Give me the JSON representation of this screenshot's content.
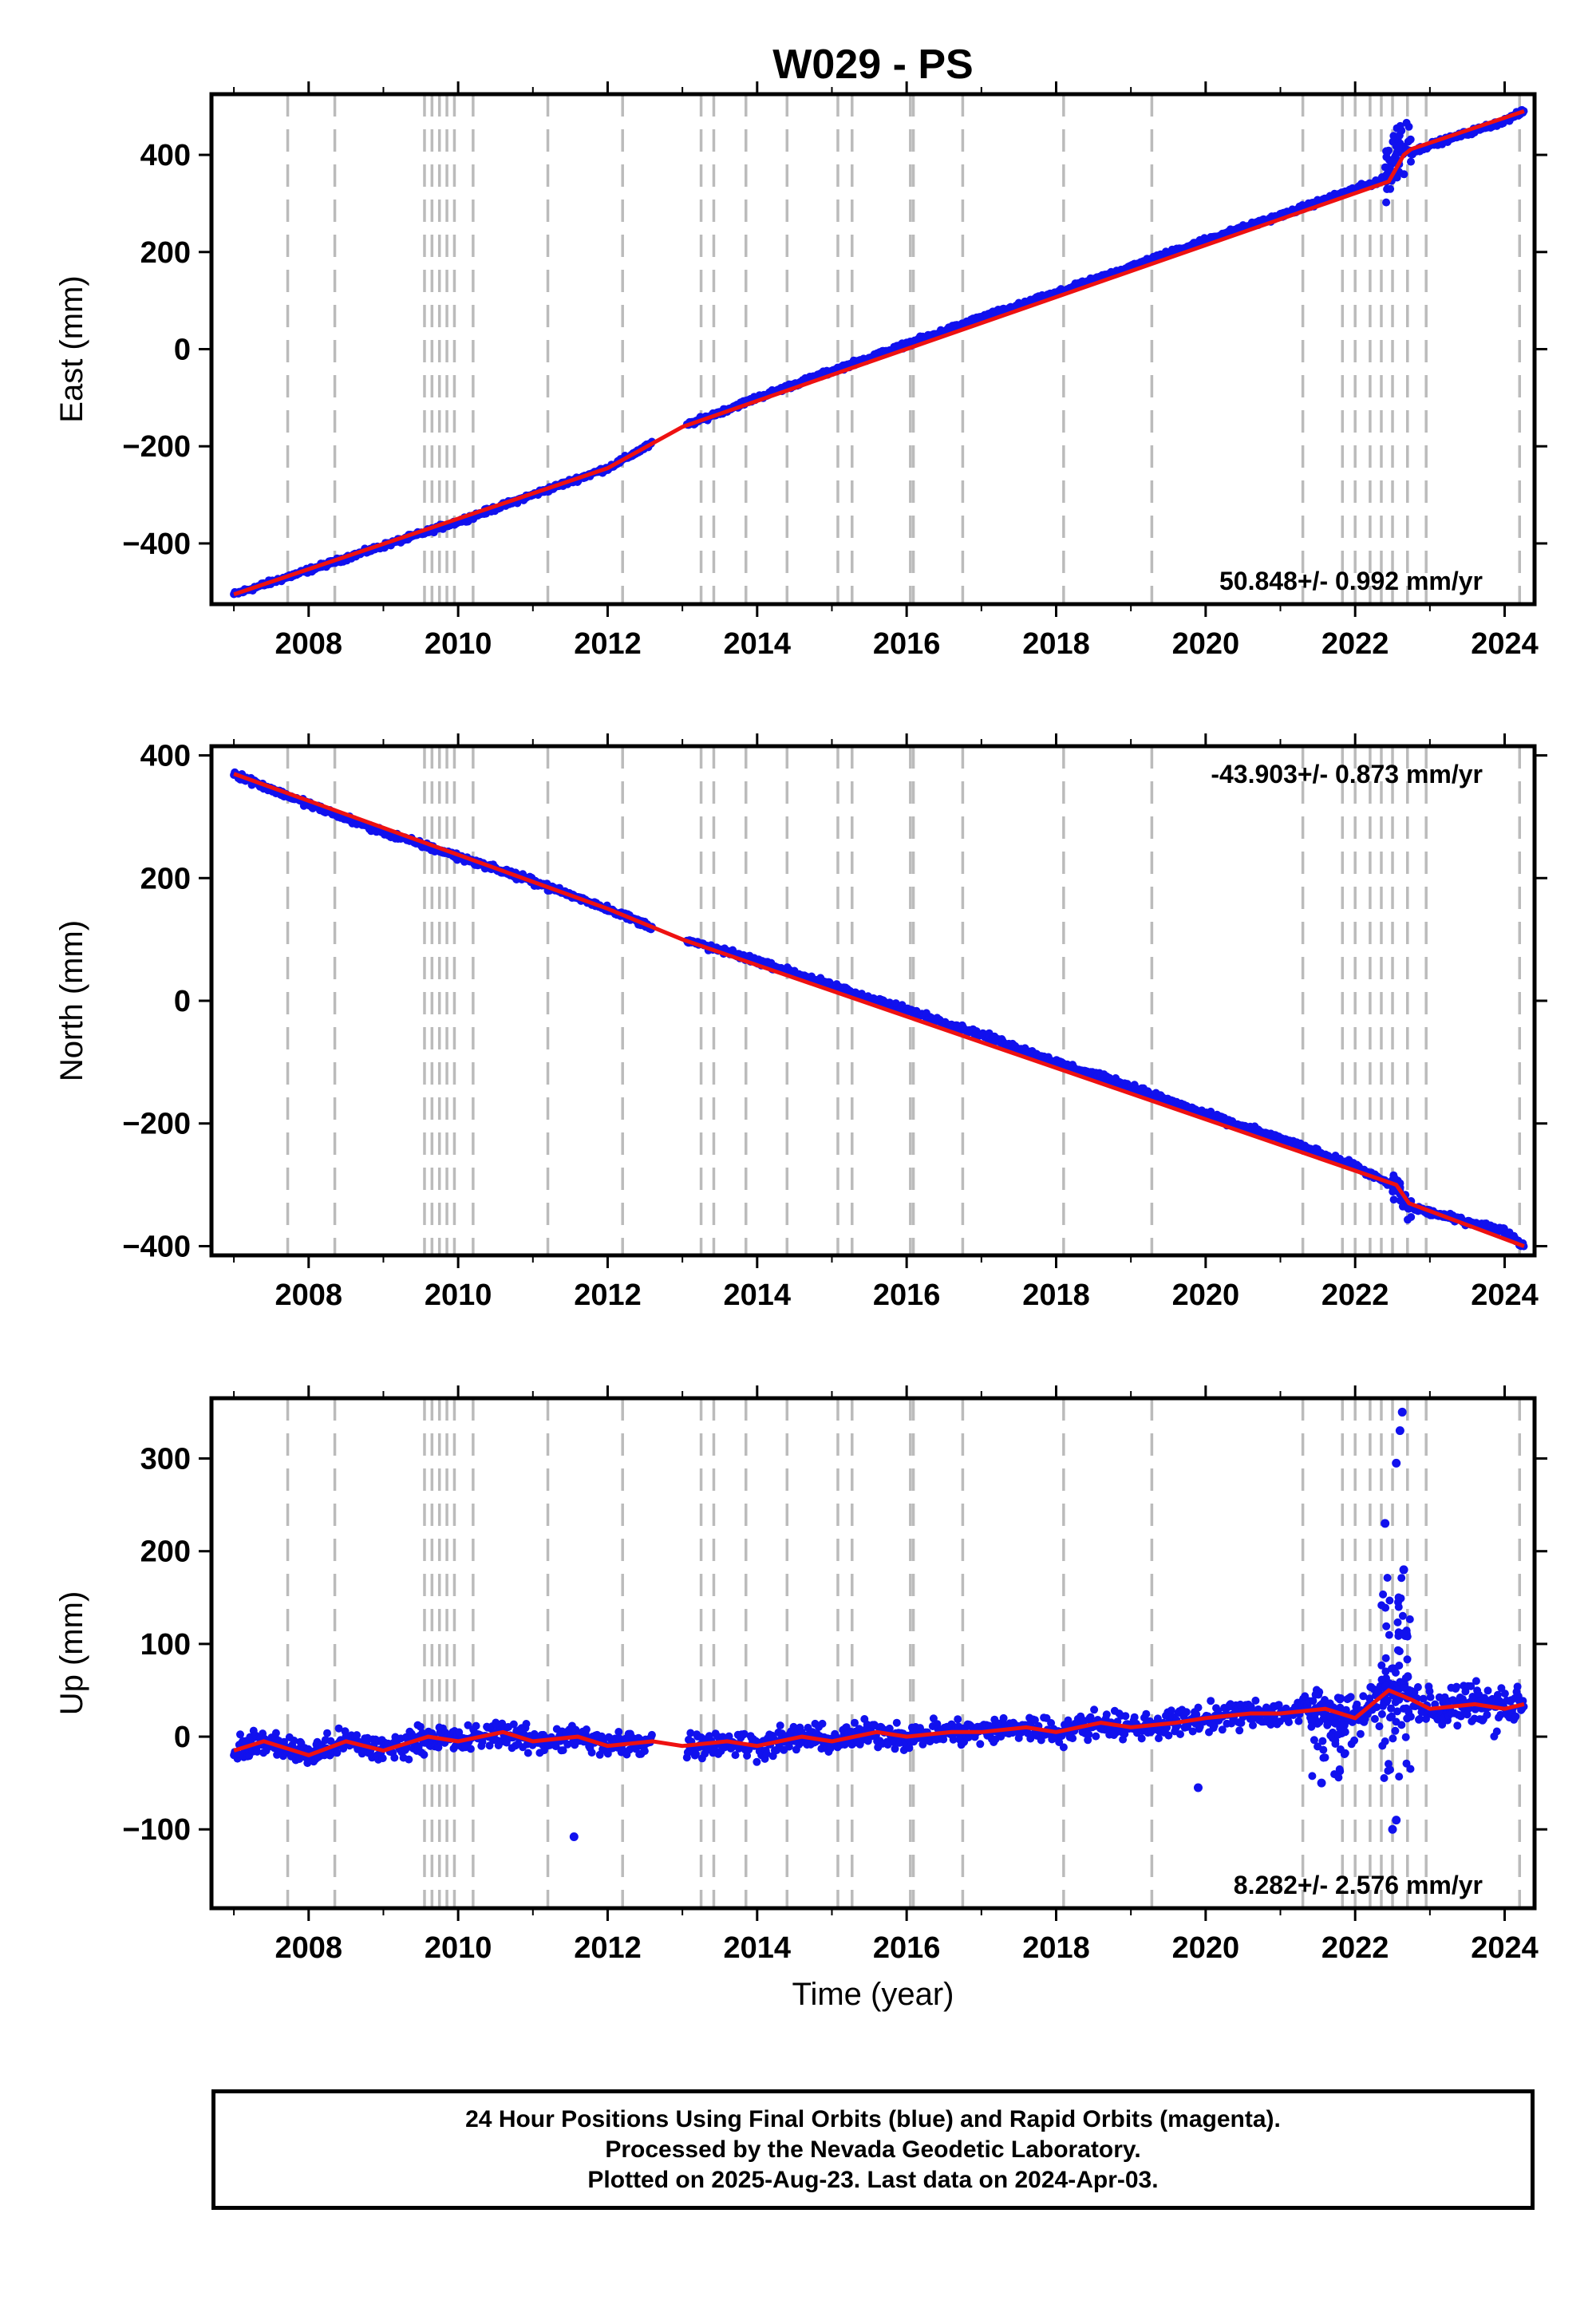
{
  "chart_data": {
    "title": "W029 - PS",
    "xlabel": "Time (year)",
    "xlim": [
      2006.7,
      2024.4
    ],
    "x_ticks": [
      2008,
      2010,
      2012,
      2014,
      2016,
      2018,
      2020,
      2022,
      2024
    ],
    "x_tick_labels": [
      "2008",
      "2010",
      "2012",
      "2014",
      "2016",
      "2018",
      "2020",
      "2022",
      "2024"
    ],
    "grid": false,
    "event_lines_x": [
      2007.72,
      2008.35,
      2009.55,
      2009.65,
      2009.75,
      2009.85,
      2009.95,
      2010.2,
      2011.2,
      2012.2,
      2013.25,
      2013.42,
      2013.85,
      2014.4,
      2015.08,
      2015.27,
      2016.05,
      2016.09,
      2016.75,
      2018.1,
      2019.28,
      2021.3,
      2021.83,
      2022.0,
      2022.2,
      2022.35,
      2022.5,
      2022.7,
      2022.95,
      2024.2
    ],
    "panels": [
      {
        "component": "East",
        "type": "scatter",
        "ylabel": "East (mm)",
        "ylim": [
          -525,
          525
        ],
        "y_ticks": [
          -400,
          -200,
          0,
          200,
          400
        ],
        "y_tick_labels": [
          "−400",
          "−200",
          "0",
          "200",
          "400"
        ],
        "rate_text": "50.848+/- 0.992 mm/yr",
        "rate_position": "bottom-right",
        "series": [
          {
            "values_x": [
              2007.0,
              2008.0,
              2009.0,
              2010.0,
              2011.0,
              2012.0,
              2013.0,
              2014.0,
              2015.0,
              2016.0,
              2017.0,
              2018.0,
              2019.0,
              2020.0,
              2021.0,
              2022.0,
              2022.4,
              2022.6,
              2022.75,
              2023.0,
              2024.0,
              2024.26
            ],
            "values_y": [
              -505,
              -455,
              -405,
              -355,
              -300,
              -245,
              -160,
              -100,
              -45,
              10,
              65,
              115,
              170,
              225,
              275,
              330,
              350,
              420,
              405,
              420,
              470,
              490
            ]
          }
        ],
        "model": {
          "x": [
            2007.0,
            2012.0,
            2013.0,
            2022.45,
            2022.65,
            2022.75,
            2024.26
          ],
          "y": [
            -505,
            -245,
            -160,
            345,
            400,
            412,
            490
          ]
        }
      },
      {
        "component": "North",
        "type": "scatter",
        "ylabel": "North (mm)",
        "ylim": [
          -415,
          415
        ],
        "y_ticks": [
          -400,
          -200,
          0,
          200,
          400
        ],
        "y_tick_labels": [
          "−400",
          "−200",
          "0",
          "200",
          "400"
        ],
        "rate_text": "-43.903+/- 0.873 mm/yr",
        "rate_position": "top-right",
        "series": [
          {
            "values_x": [
              2007.0,
              2008.0,
              2009.0,
              2010.0,
              2011.0,
              2012.0,
              2013.0,
              2014.0,
              2015.0,
              2016.0,
              2017.0,
              2018.0,
              2019.0,
              2020.0,
              2021.0,
              2022.0,
              2022.55,
              2022.7,
              2023.0,
              2024.0,
              2024.26
            ],
            "values_y": [
              370,
              320,
              275,
              235,
              195,
              150,
              100,
              65,
              25,
              -15,
              -55,
              -100,
              -140,
              -185,
              -225,
              -270,
              -305,
              -335,
              -345,
              -375,
              -400
            ]
          }
        ],
        "model": {
          "x": [
            2007.0,
            2012.0,
            2013.0,
            2022.55,
            2022.72,
            2024.26
          ],
          "y": [
            370,
            150,
            100,
            -300,
            -330,
            -400
          ]
        }
      },
      {
        "component": "Up",
        "type": "scatter",
        "ylabel": "Up (mm)",
        "ylim": [
          -185,
          365
        ],
        "y_ticks": [
          -100,
          0,
          100,
          200,
          300
        ],
        "y_tick_labels": [
          "−100",
          "0",
          "100",
          "200",
          "300"
        ],
        "rate_text": "8.282+/- 2.576 mm/yr",
        "rate_position": "bottom-right",
        "series": [
          {
            "values_x": [
              2007.0,
              2007.4,
              2008.0,
              2008.5,
              2009.0,
              2009.6,
              2010.0,
              2010.6,
              2011.0,
              2011.6,
              2012.0,
              2012.6,
              2013.0,
              2013.6,
              2014.0,
              2014.6,
              2015.0,
              2015.6,
              2016.0,
              2016.6,
              2017.0,
              2017.6,
              2018.0,
              2018.6,
              2019.0,
              2019.6,
              2020.0,
              2020.6,
              2021.0,
              2021.6,
              2022.0,
              2022.5,
              2022.7,
              2023.0,
              2023.6,
              2024.0,
              2024.26
            ],
            "values_y": [
              -15,
              -5,
              -20,
              -5,
              -15,
              0,
              -5,
              5,
              -5,
              0,
              -10,
              -5,
              -10,
              -5,
              -10,
              0,
              -5,
              5,
              0,
              5,
              5,
              10,
              5,
              15,
              10,
              15,
              20,
              25,
              25,
              30,
              20,
              50,
              40,
              30,
              35,
              30,
              35
            ]
          },
          {
            "name": "outliers",
            "values_x": [
              2011.55,
              2019.9,
              2021.55,
              2022.4,
              2022.55,
              2022.6,
              2022.63,
              2022.65,
              2022.5,
              2022.55
            ],
            "values_y": [
              -108,
              -55,
              -50,
              230,
              295,
              330,
              350,
              180,
              -100,
              -90
            ]
          }
        ],
        "model": {
          "x": [
            2007.0,
            2007.4,
            2008.0,
            2008.5,
            2009.0,
            2009.6,
            2010.0,
            2010.6,
            2011.0,
            2011.6,
            2012.0,
            2012.6,
            2013.0,
            2013.6,
            2014.0,
            2014.6,
            2015.0,
            2015.6,
            2016.0,
            2016.6,
            2017.0,
            2017.6,
            2018.0,
            2018.6,
            2019.0,
            2019.6,
            2020.0,
            2020.6,
            2021.0,
            2021.6,
            2022.0,
            2022.45,
            2022.75,
            2023.0,
            2023.6,
            2024.0,
            2024.26
          ],
          "y": [
            -15,
            -5,
            -20,
            -5,
            -15,
            0,
            -5,
            5,
            -5,
            0,
            -10,
            -5,
            -10,
            -5,
            -10,
            0,
            -5,
            5,
            0,
            5,
            5,
            10,
            5,
            15,
            10,
            15,
            20,
            25,
            25,
            30,
            20,
            50,
            40,
            30,
            35,
            30,
            35
          ]
        }
      }
    ],
    "colors": {
      "points": "#1111ee",
      "model": "#ee1111",
      "event_line": "#bbbbbb",
      "frame": "#000000"
    }
  },
  "footer": {
    "line1": "24 Hour Positions Using Final Orbits (blue) and Rapid Orbits (magenta).",
    "line2": "Processed by the Nevada Geodetic Laboratory.",
    "line3": "Plotted on 2025-Aug-23. Last data on 2024-Apr-03."
  }
}
